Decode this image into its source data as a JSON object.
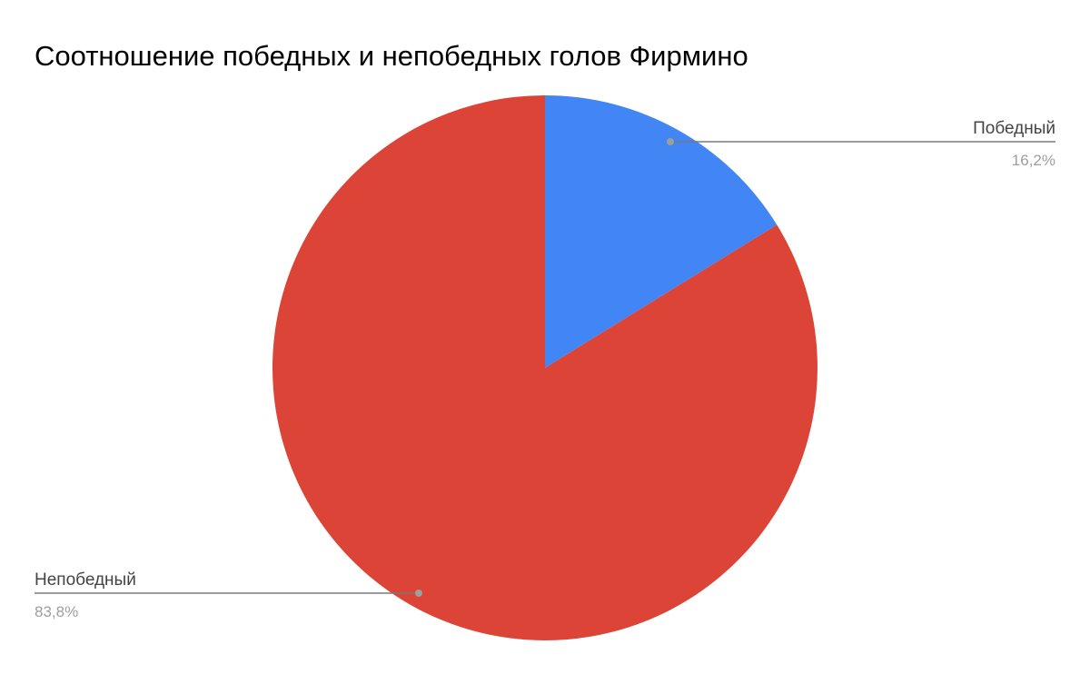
{
  "chart_data": {
    "type": "pie",
    "title": "Соотношение победных и непобедных голов Фирмино",
    "slices": [
      {
        "name": "Победный",
        "value": 16.2,
        "label": "16,2%",
        "color": "#4285f4"
      },
      {
        "name": "Непобедный",
        "value": 83.8,
        "label": "83,8%",
        "color": "#db4437"
      }
    ],
    "start_angle_deg": 0,
    "direction": "clockwise",
    "legend": "none",
    "labels": "outside-with-leader-lines"
  }
}
